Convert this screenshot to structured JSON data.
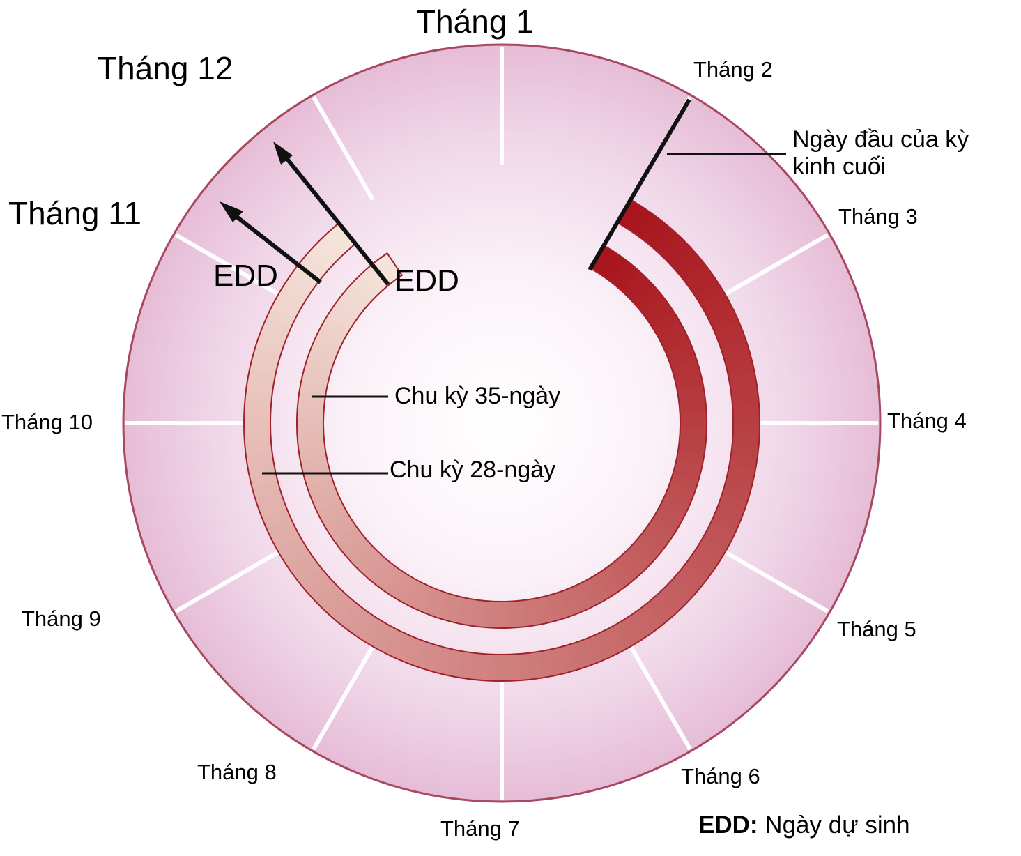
{
  "months": [
    {
      "id": "m1",
      "label": "Tháng 1"
    },
    {
      "id": "m2",
      "label": "Tháng 2"
    },
    {
      "id": "m3",
      "label": "Tháng 3"
    },
    {
      "id": "m4",
      "label": "Tháng 4"
    },
    {
      "id": "m5",
      "label": "Tháng 5"
    },
    {
      "id": "m6",
      "label": "Tháng 6"
    },
    {
      "id": "m7",
      "label": "Tháng 7"
    },
    {
      "id": "m8",
      "label": "Tháng 8"
    },
    {
      "id": "m9",
      "label": "Tháng 9"
    },
    {
      "id": "m10",
      "label": "Tháng 10"
    },
    {
      "id": "m11",
      "label": "Tháng 11"
    },
    {
      "id": "m12",
      "label": "Tháng 12"
    }
  ],
  "callouts": {
    "lmp_line1": "Ngày đầu của kỳ",
    "lmp_line2": "kinh cuối",
    "cycle_35": "Chu kỳ 35-ngày",
    "cycle_28": "Chu kỳ 28-ngày",
    "edd_outer": "EDD",
    "edd_inner": "EDD"
  },
  "legend": {
    "term": "EDD:",
    "definition": "Ngày dự sinh"
  },
  "colors": {
    "ring_fill": "#eecfe2",
    "ring_border": "#a8475f",
    "arc_start": "#a8151c",
    "arc_end": "#f5e6dc",
    "arrow": "#111111"
  }
}
